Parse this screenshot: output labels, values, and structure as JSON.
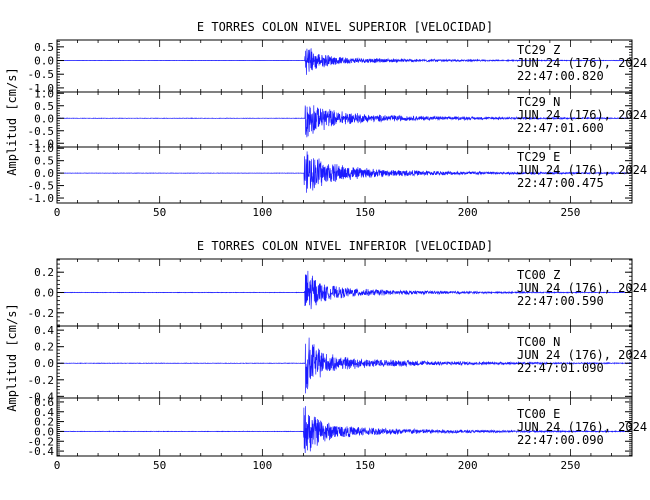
{
  "colors": {
    "trace": "#1a1aff",
    "axes": "#000000",
    "background": "#ffffff"
  },
  "chart_data": [
    {
      "type": "line",
      "title": "E TORRES COLON NIVEL SUPERIOR [VELOCIDAD]",
      "ylabel": "Amplitud [cm/s]",
      "xlim": [
        0,
        280
      ],
      "x_ticks": [
        0,
        50,
        100,
        150,
        200,
        250
      ],
      "panels": [
        {
          "channel": "TC29   Z",
          "date": "JUN 24 (176), 2024",
          "time": "22:47:00.820",
          "ylim": [
            -1.15,
            0.75
          ],
          "y_ticks": [
            -1.0,
            -0.5,
            0.0,
            0.5
          ],
          "y_tick_labels": [
            "-1.0",
            "-0.5",
            "0.0",
            "0.5"
          ],
          "onset_s": 120.5,
          "peak_amplitude": 0.72,
          "decay_s": 6,
          "coda_s": 45
        },
        {
          "channel": "TC29   N",
          "date": "JUN 24 (176), 2024",
          "time": "22:47:01.600",
          "ylim": [
            -1.15,
            1.05
          ],
          "y_ticks": [
            -1.0,
            -0.5,
            0.0,
            0.5,
            1.0
          ],
          "y_tick_labels": [
            "-1.0",
            "-0.5",
            "0.0",
            "0.5",
            "1.0"
          ],
          "onset_s": 120.8,
          "peak_amplitude": 0.95,
          "decay_s": 10,
          "coda_s": 60
        },
        {
          "channel": "TC29   E",
          "date": "JUN 24 (176), 2024",
          "time": "22:47:00.475",
          "ylim": [
            -1.2,
            1.05
          ],
          "y_ticks": [
            -1.0,
            -0.5,
            0.0,
            0.5,
            1.0
          ],
          "y_tick_labels": [
            "-1.0",
            "-0.5",
            "0.0",
            "0.5",
            "1.0"
          ],
          "onset_s": 120.3,
          "peak_amplitude": 0.98,
          "decay_s": 12,
          "coda_s": 65
        }
      ]
    },
    {
      "type": "line",
      "title": "E TORRES COLON NIVEL INFERIOR [VELOCIDAD]",
      "ylabel": "Amplitud [cm/s]",
      "xlim": [
        0,
        280
      ],
      "x_ticks": [
        0,
        50,
        100,
        150,
        200,
        250
      ],
      "panels": [
        {
          "channel": "TC00   Z",
          "date": "JUN 24 (176), 2024",
          "time": "22:47:00.590",
          "ylim": [
            -0.33,
            0.33
          ],
          "y_ticks": [
            -0.2,
            0.0,
            0.2
          ],
          "y_tick_labels": [
            "-0.2",
            "0.0",
            "0.2"
          ],
          "onset_s": 120.6,
          "peak_amplitude": 0.31,
          "decay_s": 5,
          "coda_s": 40
        },
        {
          "channel": "TC00   N",
          "date": "JUN 24 (176), 2024",
          "time": "22:47:01.090",
          "ylim": [
            -0.42,
            0.45
          ],
          "y_ticks": [
            -0.4,
            -0.2,
            0.0,
            0.2,
            0.4
          ],
          "y_tick_labels": [
            "-0.4",
            "-0.2",
            "0.0",
            "0.2",
            "0.4"
          ],
          "onset_s": 120.9,
          "peak_amplitude": 0.4,
          "decay_s": 6,
          "coda_s": 50
        },
        {
          "channel": "TC00   E",
          "date": "JUN 24 (176), 2024",
          "time": "22:47:00.090",
          "ylim": [
            -0.5,
            0.68
          ],
          "y_ticks": [
            -0.4,
            -0.2,
            0.0,
            0.2,
            0.4,
            0.6
          ],
          "y_tick_labels": [
            "-0.4",
            "-0.2",
            "0.0",
            "0.2",
            "0.4",
            "0.6"
          ],
          "onset_s": 120.1,
          "peak_amplitude": 0.62,
          "decay_s": 7,
          "coda_s": 50
        }
      ]
    }
  ]
}
